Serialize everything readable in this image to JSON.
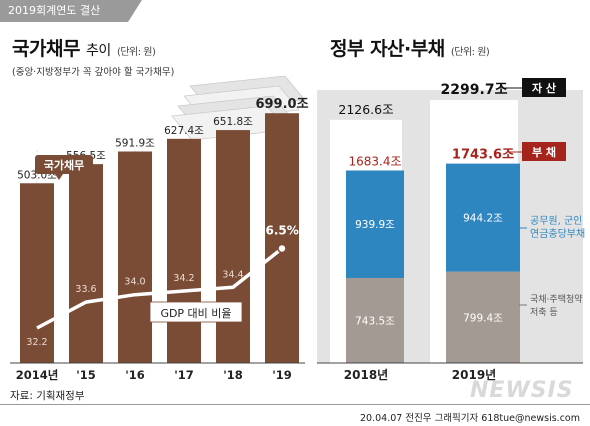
{
  "header": {
    "tag": "2019회계연도 결산"
  },
  "left": {
    "title": "국가채무",
    "title_sub": "추이",
    "unit": "(단위: 원)",
    "note": "(중앙·지방정부가 꼭 갚아야 할 국가채무)",
    "badge": "국가채무",
    "line_label": "GDP 대비 비율"
  },
  "right": {
    "title": "정부 자산·부채",
    "unit": "(단위: 원)",
    "legend_asset": "자 산",
    "legend_liab": "부 채",
    "note_pension": "공무원, 군인\n연금충당부채",
    "note_housing": "국채·주택청약\n저축 등"
  },
  "footer": {
    "source": "자료: 기획재정부",
    "credit": "20.04.07 전진우 그래픽기자 618tue@newsis.com",
    "logo": "NEWSIS"
  },
  "colors": {
    "debt_bar": "#7a4b35",
    "asset_box": "#ffffff",
    "liab_red": "#a5251d",
    "pension": "#2e86c1",
    "housing": "#a39a93",
    "panel_bg": "#e3e3e3"
  },
  "chart_data": [
    {
      "type": "bar",
      "title": "국가채무 추이",
      "categories": [
        "2014년",
        "'15",
        "'16",
        "'17",
        "'18",
        "'19"
      ],
      "series": [
        {
          "name": "국가채무",
          "values": [
            503.0,
            556.5,
            591.9,
            627.4,
            651.8,
            699.0
          ],
          "labels": [
            "503.0조",
            "556.5조",
            "591.9조",
            "627.4조",
            "651.8조",
            "699.0조"
          ]
        },
        {
          "name": "GDP 대비 비율",
          "type": "line",
          "values": [
            32.2,
            33.6,
            34.0,
            34.2,
            34.4,
            36.5
          ],
          "labels": [
            "32.2",
            "33.6",
            "34.0",
            "34.2",
            "34.4",
            "36.5%"
          ]
        }
      ],
      "ylim": [
        0,
        750
      ]
    },
    {
      "type": "bar",
      "title": "정부 자산·부채",
      "categories": [
        "2018년",
        "2019년"
      ],
      "series": [
        {
          "name": "자 산",
          "values": [
            2126.6,
            2299.7
          ],
          "labels": [
            "2126.6조",
            "2299.7조"
          ]
        },
        {
          "name": "부 채",
          "values": [
            1683.4,
            1743.6
          ],
          "labels": [
            "1683.4조",
            "1743.6조"
          ]
        },
        {
          "name": "공무원, 군인 연금충당부채",
          "values": [
            939.9,
            944.2
          ],
          "labels": [
            "939.9조",
            "944.2조"
          ]
        },
        {
          "name": "국채·주택청약 저축 등",
          "values": [
            743.5,
            799.4
          ],
          "labels": [
            "743.5조",
            "799.4조"
          ]
        }
      ],
      "ylim": [
        0,
        2300
      ]
    }
  ]
}
